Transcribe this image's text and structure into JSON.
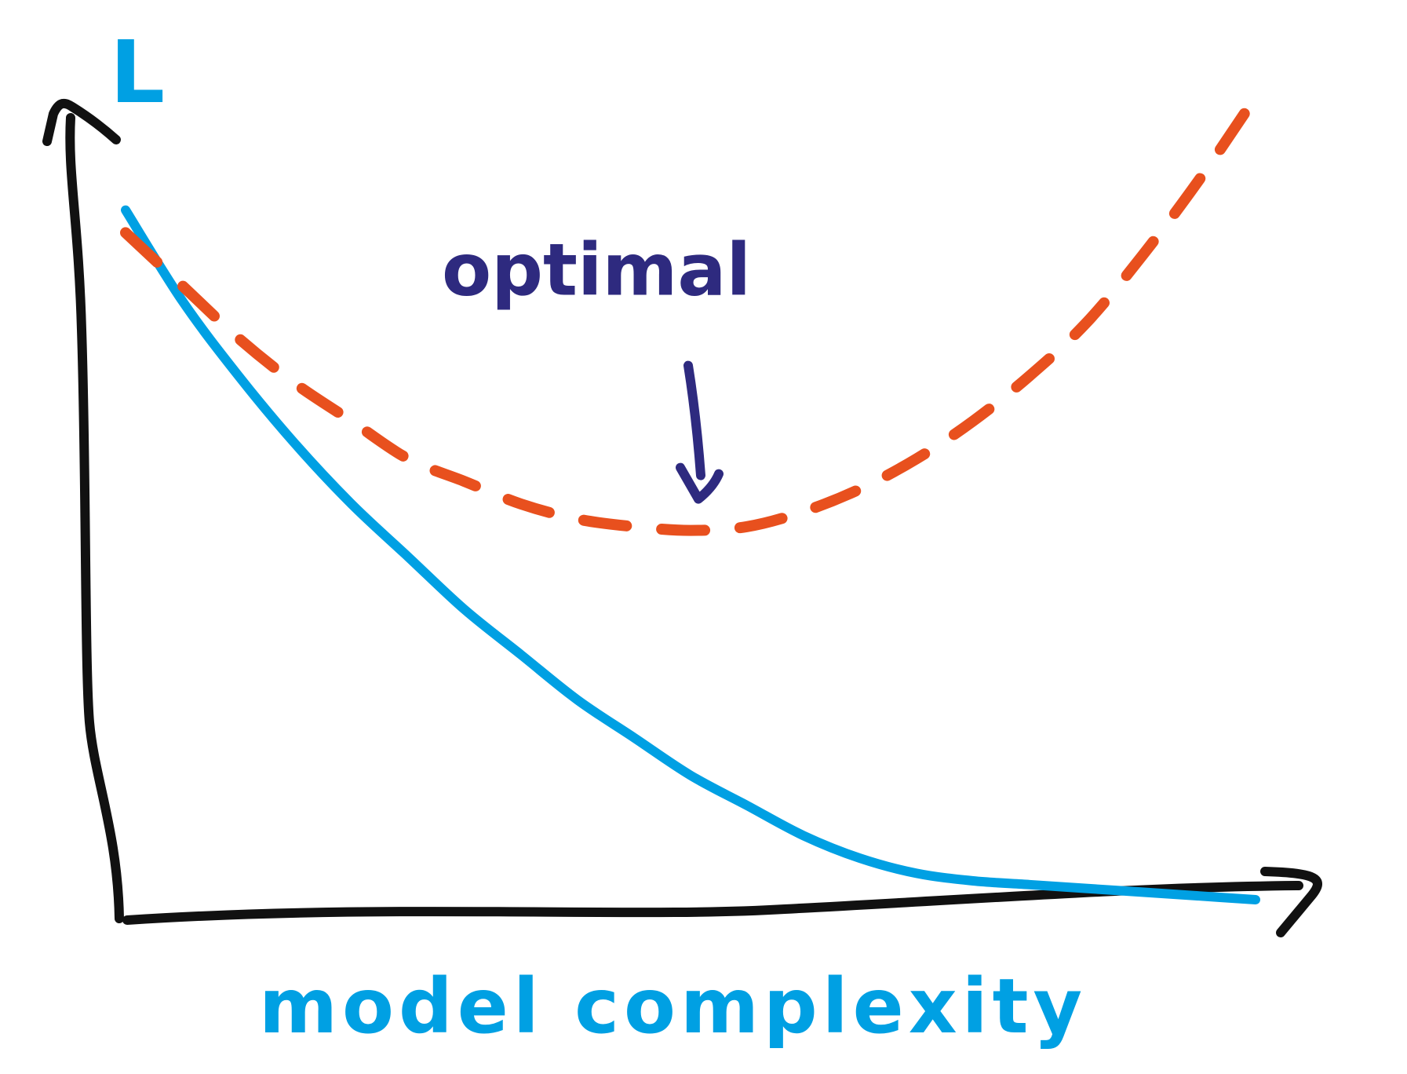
{
  "chart_data": {
    "type": "line",
    "title": "",
    "xlabel": "model complexity",
    "ylabel": "L",
    "x": [
      0,
      5,
      10,
      15,
      20,
      25,
      30,
      35,
      40,
      45,
      50,
      55,
      60,
      65,
      70,
      75,
      80,
      85,
      90,
      95,
      100
    ],
    "series": [
      {
        "values": [
          94,
          82,
          72,
          63,
          55,
          48,
          41,
          35,
          29,
          24,
          19,
          15,
          11,
          8,
          6,
          5,
          4.5,
          4,
          3.5,
          3,
          2.5
        ]
      },
      {
        "values": [
          91,
          84,
          77,
          71,
          66,
          61,
          58,
          55,
          53,
          52,
          51.5,
          52,
          54,
          57,
          61,
          66,
          72,
          79,
          88,
          98,
          109
        ]
      }
    ],
    "annotations": [
      {
        "text": "optimal",
        "x": 50,
        "y": 51.5
      }
    ],
    "grid": false,
    "legend": "none",
    "colors": {
      "axes": "#111111",
      "series_solid": "#00A0E3",
      "series_dashed": "#E8501E",
      "annotation": "#2E2A7F",
      "axis_labels": "#00A0E3"
    }
  }
}
